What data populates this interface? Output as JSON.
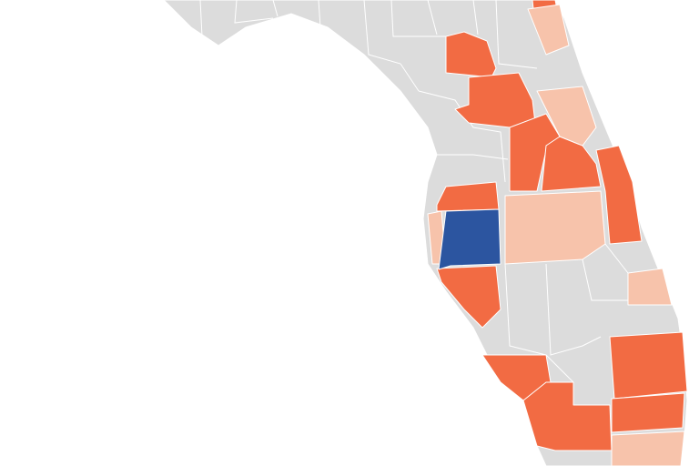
{
  "map": {
    "regions": [
      {
        "color": "#f26b43"
      },
      {
        "color": "#f26b43"
      },
      {
        "color": "#f26b43"
      },
      {
        "color": "#f26b43"
      },
      {
        "color": "#f26b43"
      },
      {
        "color": "#f26b43"
      },
      {
        "color": "#f26b43"
      },
      {
        "color": "#f26b43"
      },
      {
        "color": "#f26b43"
      },
      {
        "color": "#f26b43"
      },
      {
        "color": "#f26b43"
      },
      {
        "color": "#f26b43"
      },
      {
        "color": "#f7c3ab"
      },
      {
        "color": "#f7c3ab"
      },
      {
        "color": "#f7c3ab"
      },
      {
        "color": "#f7c3ab"
      },
      {
        "color": "#f7c3ab"
      },
      {
        "color": "#f7c3ab"
      },
      {
        "color": "#2c55a0"
      }
    ]
  }
}
